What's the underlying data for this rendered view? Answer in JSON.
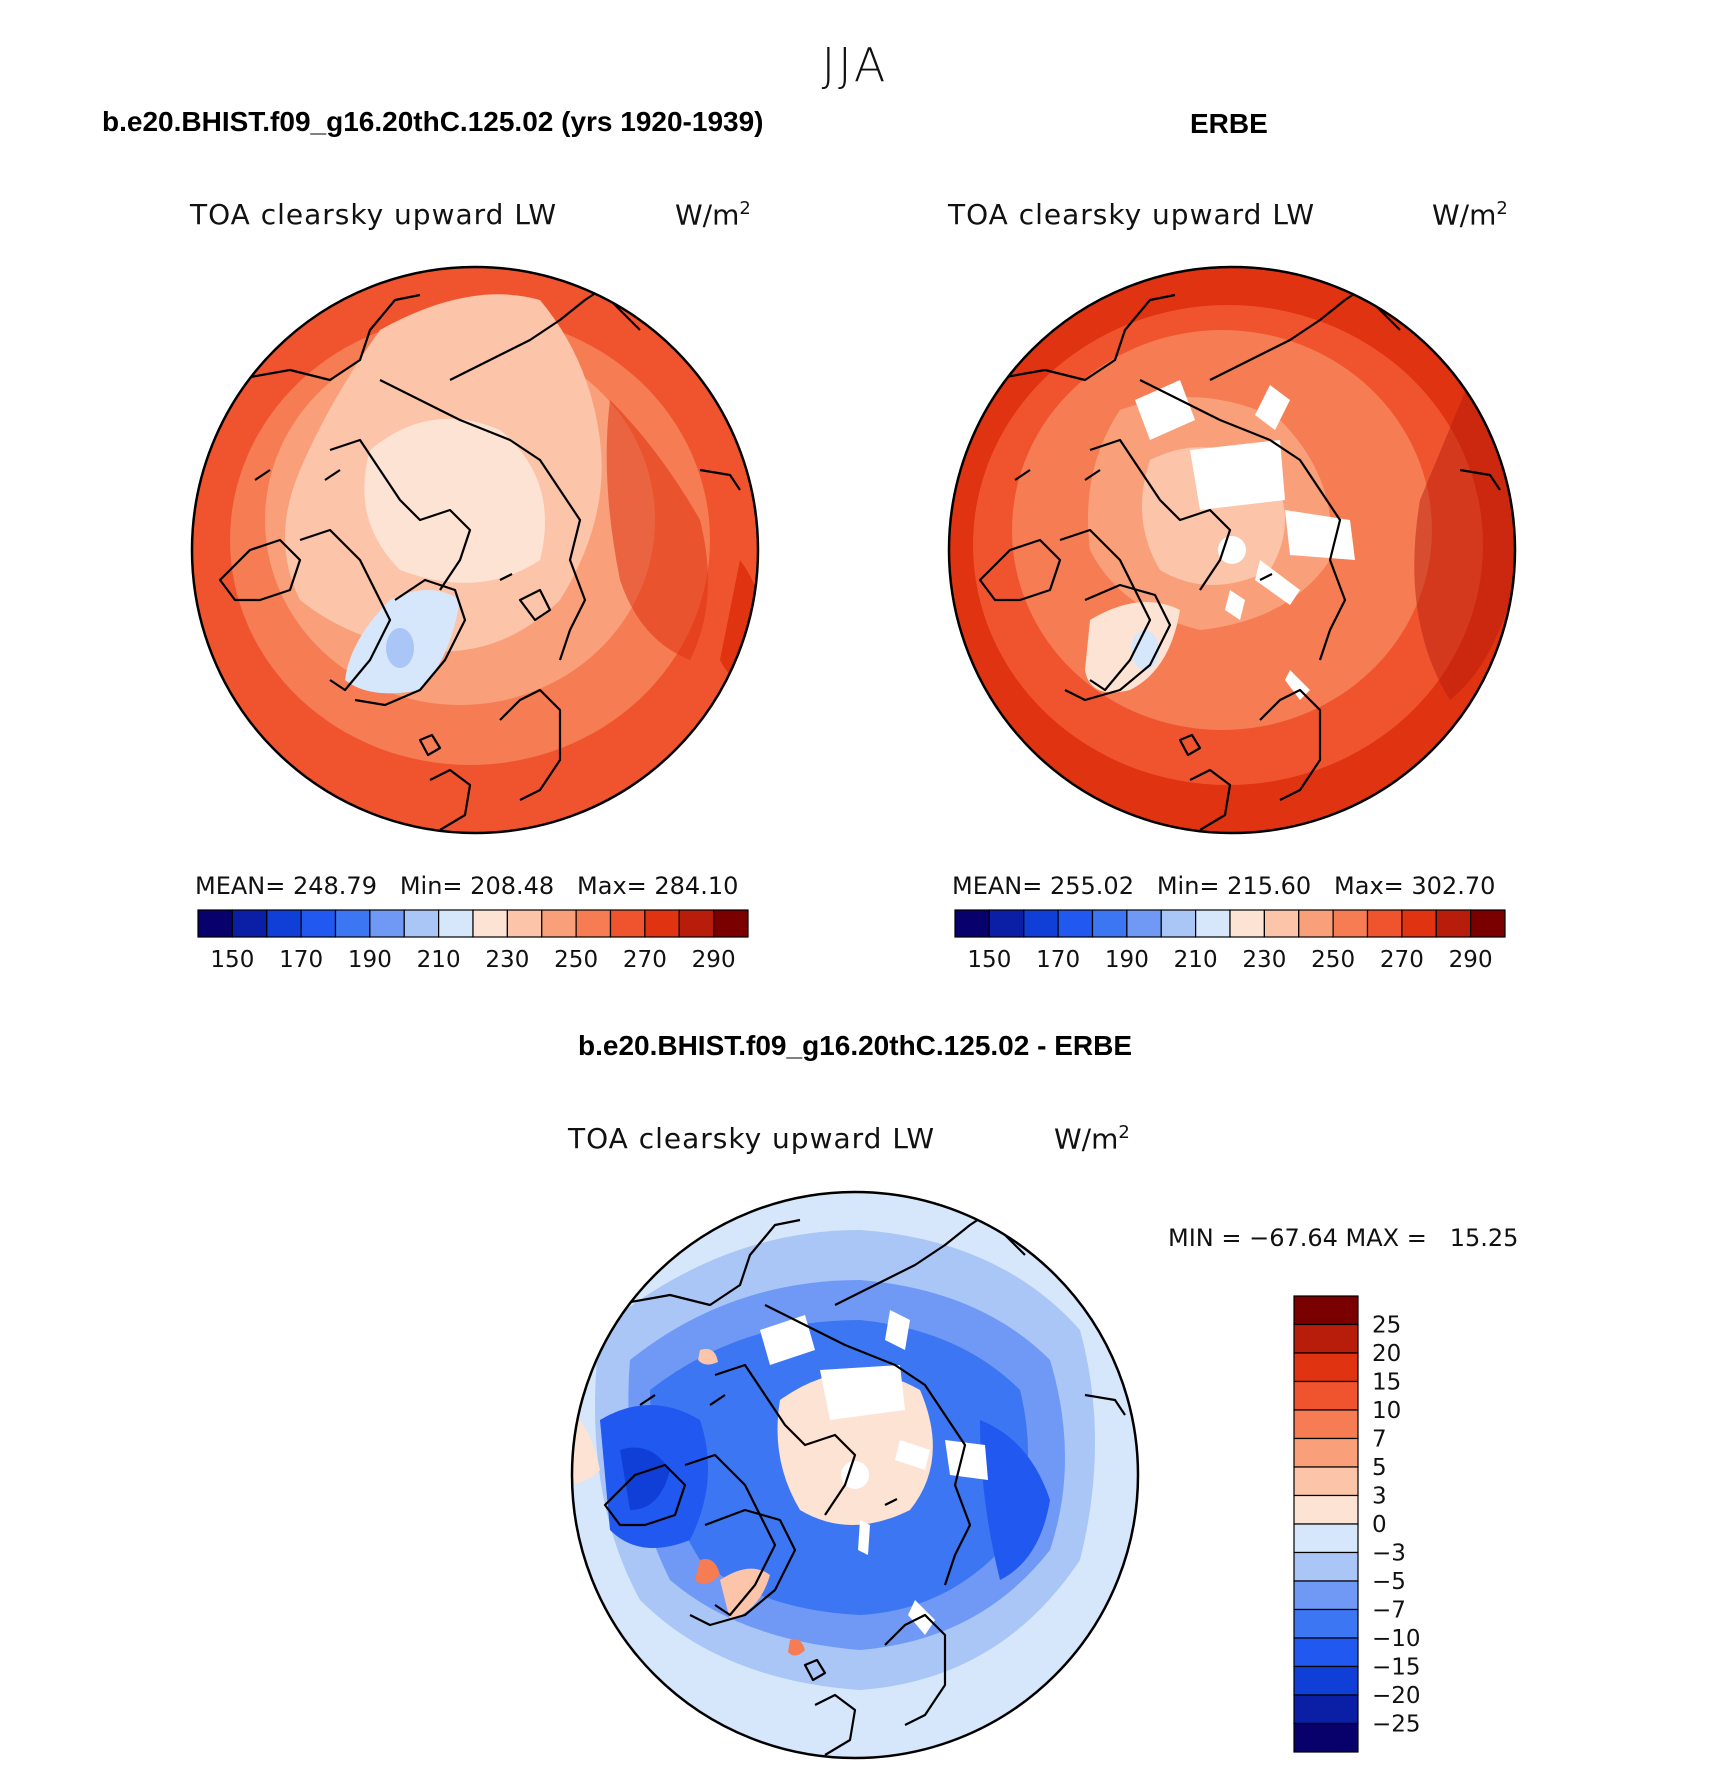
{
  "figure": {
    "season": "JJA"
  },
  "panels": {
    "model": {
      "title": "b.e20.BHIST.f09_g16.20thC.125.02 (yrs 1920-1939)",
      "variable": "TOA clearsky upward LW",
      "units_base": "W/m",
      "units_sup": "2",
      "stats_text": "MEAN= 248.79   Min= 208.48   Max= 284.10"
    },
    "obs": {
      "title": "ERBE",
      "variable": "TOA clearsky upward LW",
      "units_base": "W/m",
      "units_sup": "2",
      "stats_text": "MEAN= 255.02   Min= 215.60   Max= 302.70"
    },
    "diff": {
      "title": "b.e20.BHIST.f09_g16.20thC.125.02 - ERBE",
      "variable": "TOA clearsky upward LW",
      "units_base": "W/m",
      "units_sup": "2",
      "stats_text": "MIN = −67.64 MAX =   15.25"
    }
  },
  "colorbars": {
    "abs": {
      "colors": [
        "#08006b",
        "#0b1fa6",
        "#0f3fd6",
        "#2158f0",
        "#3d76f2",
        "#6f99f5",
        "#a9c6f7",
        "#d6e6fb",
        "#fde3d3",
        "#fcc4a8",
        "#f9a07b",
        "#f57c53",
        "#f0542f",
        "#df3312",
        "#b81d0c",
        "#7a0000"
      ],
      "tick_labels": [
        "150",
        "170",
        "190",
        "210",
        "230",
        "250",
        "270",
        "290"
      ]
    },
    "diff": {
      "colors": [
        "#08006b",
        "#0b1fa6",
        "#0f3fd6",
        "#2158f0",
        "#3d76f2",
        "#6f99f5",
        "#a9c6f7",
        "#d6e6fb",
        "#fde3d3",
        "#fcc4a8",
        "#f9a07b",
        "#f57c53",
        "#f0542f",
        "#df3312",
        "#b81d0c",
        "#7a0000"
      ],
      "tick_labels": [
        "25",
        "20",
        "15",
        "10",
        "7",
        "5",
        "3",
        "0",
        "−3",
        "−5",
        "−7",
        "−10",
        "−15",
        "−20",
        "−25"
      ]
    }
  }
}
